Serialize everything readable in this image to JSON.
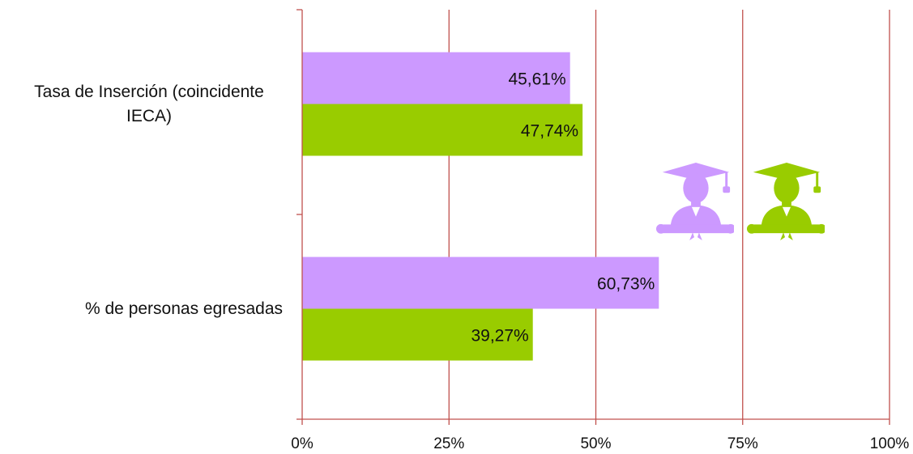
{
  "chart_data": {
    "type": "bar",
    "orientation": "horizontal",
    "categories": [
      "Tasa de Inserción (coincidente IECA)",
      "% de personas egresadas"
    ],
    "category_label_lines": [
      [
        "Tasa de Inserción (coincidente",
        "IECA)"
      ],
      [
        "% de personas egresadas"
      ]
    ],
    "series": [
      {
        "color": "#cc99ff",
        "values": [
          45.61,
          60.73
        ],
        "labels": [
          "45,61%",
          "60,73%"
        ]
      },
      {
        "color": "#99cc00",
        "values": [
          47.74,
          39.27
        ],
        "labels": [
          "47,74%",
          "39,27%"
        ]
      }
    ],
    "xlim": [
      0,
      100
    ],
    "x_ticks": [
      0,
      25,
      50,
      75,
      100
    ],
    "x_tick_labels": [
      "0%",
      "25%",
      "50%",
      "75%",
      "100%"
    ],
    "grid": true,
    "grid_color": "#c0504d",
    "legend": "graduate icons (female purple, male green) inside plot, right of center"
  },
  "icons": {
    "female": {
      "name": "female-graduate-icon",
      "color": "#cc99ff"
    },
    "male": {
      "name": "male-graduate-icon",
      "color": "#99cc00"
    }
  }
}
